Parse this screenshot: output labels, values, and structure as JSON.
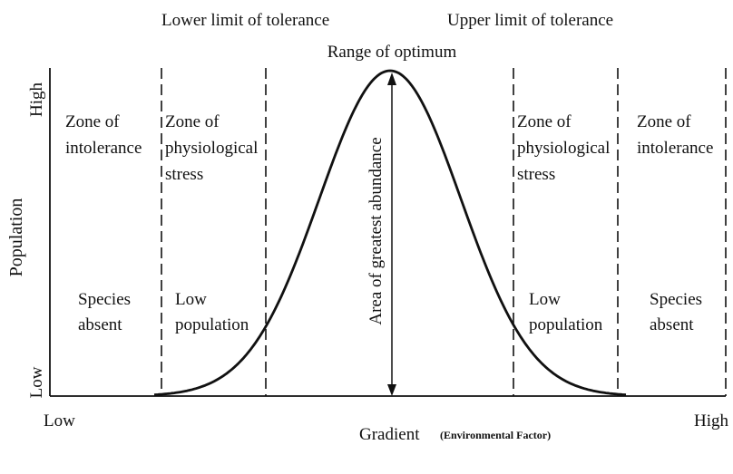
{
  "title": {
    "lower_limit": "Lower limit of tolerance",
    "upper_limit": "Upper limit of tolerance",
    "optimum": "Range of optimum"
  },
  "y_axis": {
    "label": "Population",
    "high": "High",
    "low": "Low"
  },
  "x_axis": {
    "low": "Low",
    "label": "Gradient",
    "note": "(Environmental Factor)",
    "high": "High"
  },
  "peak_label": "Area of greatest abundance",
  "zones": [
    {
      "title": [
        "Zone of",
        "intolerance"
      ],
      "status": [
        "Species",
        "absent"
      ]
    },
    {
      "title": [
        "Zone of",
        "physiological",
        "stress"
      ],
      "status": [
        "Low",
        "population"
      ]
    },
    {
      "title": [
        "Zone of",
        "physiological",
        "stress"
      ],
      "status": [
        "Low",
        "population"
      ]
    },
    {
      "title": [
        "Zone of",
        "intolerance"
      ],
      "status": [
        "Species",
        "absent"
      ]
    }
  ]
}
